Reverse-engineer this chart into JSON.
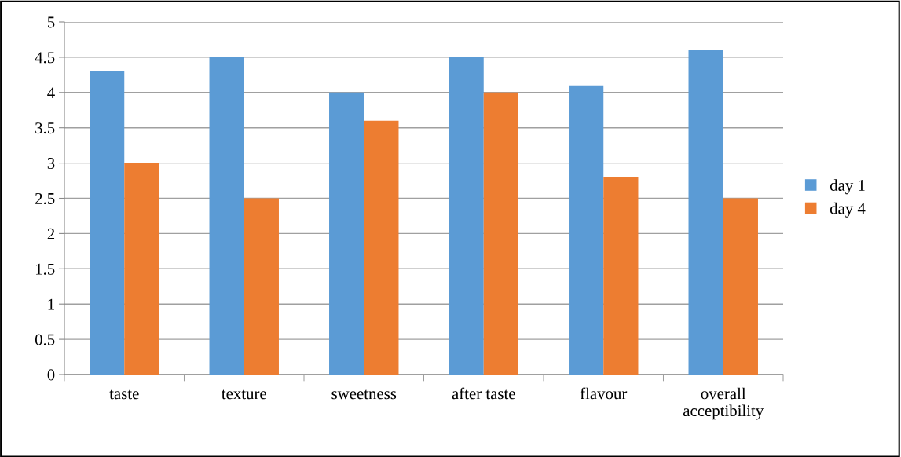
{
  "chart_data": {
    "type": "bar",
    "categories": [
      "taste",
      "texture",
      "sweetness",
      "after taste",
      "flavour",
      "overall\nacceptibility"
    ],
    "series": [
      {
        "name": "day 1",
        "color": "#5b9bd5",
        "values": [
          4.3,
          4.5,
          4.0,
          4.5,
          4.1,
          4.6
        ]
      },
      {
        "name": "day 4",
        "color": "#ed7d31",
        "values": [
          3.0,
          2.5,
          3.6,
          4.0,
          2.8,
          2.5
        ]
      }
    ],
    "ylim": [
      0,
      5
    ],
    "yticks": [
      0,
      0.5,
      1,
      1.5,
      2,
      2.5,
      3,
      3.5,
      4,
      4.5,
      5
    ],
    "grid": "y",
    "legend": "right"
  }
}
